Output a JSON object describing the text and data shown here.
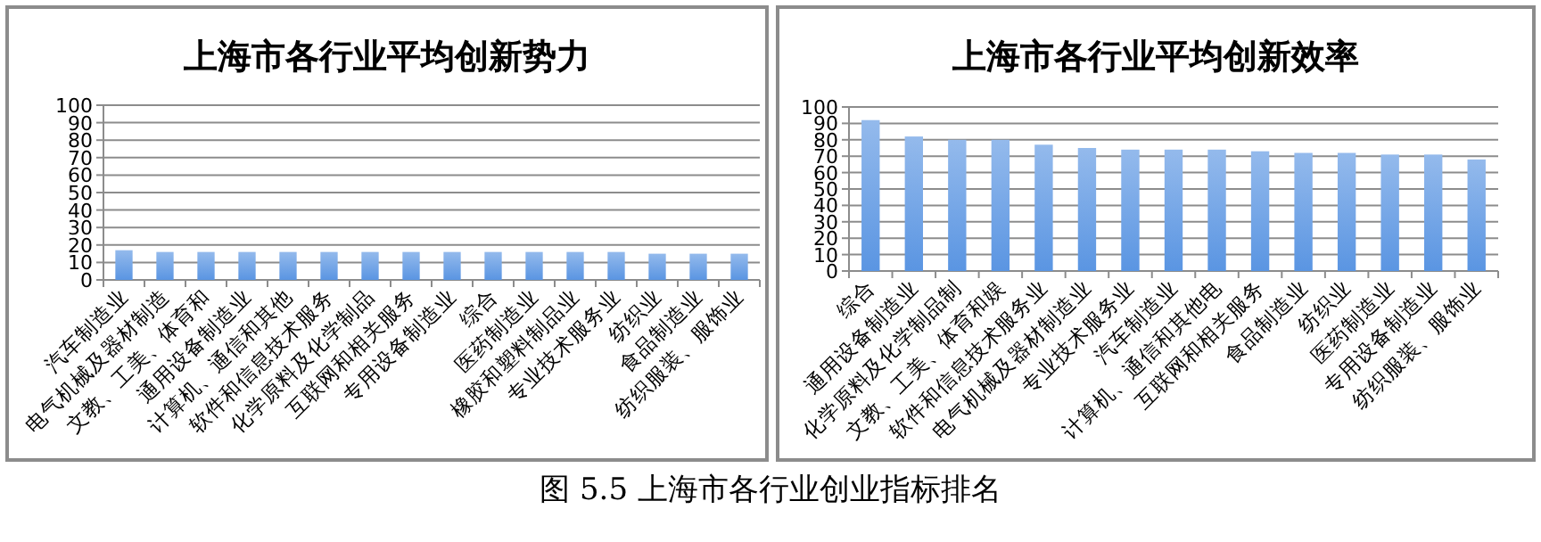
{
  "chart_data": [
    {
      "type": "bar",
      "title": "上海市各行业平均创新势力",
      "categories": [
        "汽车制造业",
        "电气机械及器材制造",
        "文教、工美、体育和",
        "通用设备制造业",
        "计算机、通信和其他",
        "软件和信息技术服务",
        "化学原料及化学制品",
        "互联网和相关服务",
        "专用设备制造业",
        "综合",
        "医药制造业",
        "橡胶和塑料制品业",
        "专业技术服务业",
        "纺织业",
        "食品制造业",
        "纺织服装、服饰业"
      ],
      "values": [
        17,
        16,
        16,
        16,
        16,
        16,
        16,
        16,
        16,
        16,
        16,
        16,
        16,
        15,
        15,
        15
      ],
      "color": "#5a95e2",
      "ylim": [
        0,
        100
      ],
      "yticks": [
        0,
        10,
        20,
        30,
        40,
        50,
        60,
        70,
        80,
        90,
        100
      ],
      "grid": "y",
      "annotations": [
        "图 5.5  上海市各行业创业指标排名"
      ]
    },
    {
      "type": "bar",
      "title": "上海市各行业平均创新效率",
      "categories": [
        "综合",
        "通用设备制造业",
        "化学原料及化学制品制",
        "文教、工美、体育和娱",
        "软件和信息技术服务业",
        "电气机械及器材制造业",
        "专业技术服务业",
        "汽车制造业",
        "计算机、通信和其他电",
        "互联网和相关服务",
        "食品制造业",
        "纺织业",
        "医药制造业",
        "专用设备制造业",
        "纺织服装、服饰业"
      ],
      "values": [
        92,
        82,
        80,
        80,
        77,
        75,
        74,
        74,
        74,
        73,
        72,
        72,
        71,
        71,
        68
      ],
      "color": "#5a95e2",
      "ylim": [
        0,
        100
      ],
      "yticks": [
        0,
        10,
        20,
        30,
        40,
        50,
        60,
        70,
        80,
        90,
        100
      ],
      "grid": "y"
    }
  ]
}
